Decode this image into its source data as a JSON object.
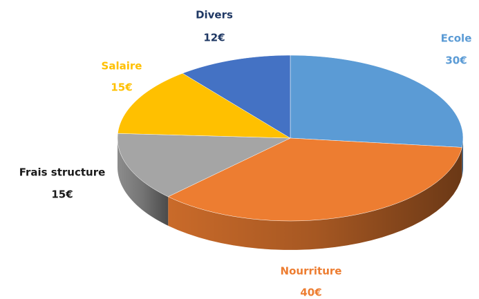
{
  "chart_data": {
    "type": "pie3d",
    "categories": [
      "Ecole",
      "Nourriture",
      "Frais structure",
      "Salaire",
      "Divers"
    ],
    "values": [
      30,
      40,
      15,
      15,
      12
    ],
    "value_labels": [
      "30€",
      "40€",
      "15€",
      "15€",
      "12€"
    ],
    "colors": [
      "#5b9bd5",
      "#ed7d31",
      "#a5a5a5",
      "#ffc000",
      "#4472c4"
    ],
    "label_colors": [
      "#5b9bd5",
      "#ed7d31",
      "#1a1a1a",
      "#ffc000",
      "#1f3864"
    ]
  }
}
